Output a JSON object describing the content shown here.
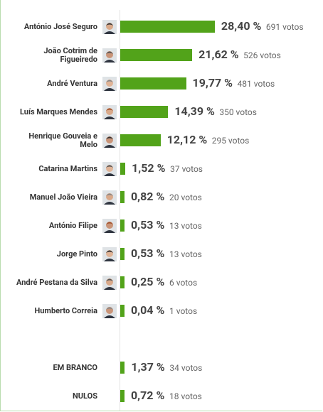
{
  "chart_data": [
    {
      "type": "bar",
      "orientation": "horizontal",
      "color": "#52a31a",
      "categories": [
        "António José Seguro",
        "João Cotrim de Figueiredo",
        "André Ventura",
        "Luís Marques Mendes",
        "Henrique Gouveia e Melo",
        "Catarina Martins",
        "Manuel João Vieira",
        "António Filipe",
        "Jorge Pinto",
        "André Pestana da Silva",
        "Humberto Correia"
      ],
      "values": [
        28.4,
        21.62,
        19.77,
        14.39,
        12.12,
        1.52,
        0.82,
        0.53,
        0.53,
        0.25,
        0.04
      ],
      "value_labels": [
        "28,40 %",
        "21,62 %",
        "19,77 %",
        "14,39 %",
        "12,12 %",
        "1,52 %",
        "0,82 %",
        "0,53 %",
        "0,53 %",
        "0,25 %",
        "0,04 %"
      ],
      "votes": [
        "691 votos",
        "526 votos",
        "481 votos",
        "350 votos",
        "295 votos",
        "37 votos",
        "20 votos",
        "13 votos",
        "13 votos",
        "6 votos",
        "1 votos"
      ]
    },
    {
      "type": "bar",
      "orientation": "horizontal",
      "color": "#52a31a",
      "categories": [
        "EM BRANCO",
        "NULOS"
      ],
      "values": [
        1.37,
        0.72
      ],
      "value_labels": [
        "1,37 %",
        "0,72 %"
      ],
      "votes": [
        "34 votos",
        "18 votos"
      ]
    }
  ]
}
